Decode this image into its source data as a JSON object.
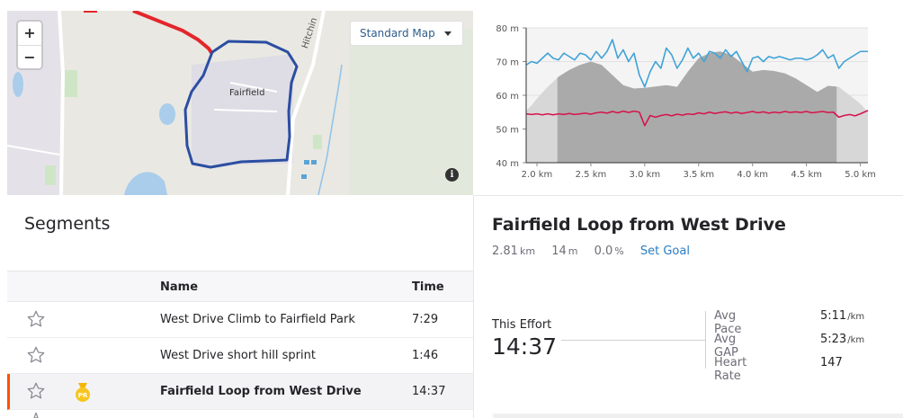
{
  "map": {
    "zoom_in": "+",
    "zoom_out": "−",
    "map_type": "Standard Map",
    "info": "i",
    "place_label": "Fairfield",
    "road_label": "Hitchin"
  },
  "chart_data": {
    "type": "area",
    "xlabel": "",
    "ylabel": "",
    "x_ticks": [
      "2.0 km",
      "2.5 km",
      "3.0 km",
      "3.5 km",
      "4.0 km",
      "4.5 km",
      "5.0 km"
    ],
    "y_ticks": [
      "40 m",
      "50 m",
      "60 m",
      "70 m",
      "80 m"
    ],
    "xlim": [
      1.9,
      5.07
    ],
    "ylim": [
      40,
      80
    ],
    "highlight_range": [
      2.19,
      4.78
    ],
    "series": [
      {
        "kind": "elevation",
        "color": "#aaaaaa",
        "x": [
          1.9,
          1.95,
          2.0,
          2.1,
          2.2,
          2.3,
          2.4,
          2.5,
          2.6,
          2.7,
          2.8,
          2.9,
          3.0,
          3.1,
          3.2,
          3.3,
          3.4,
          3.5,
          3.6,
          3.7,
          3.8,
          3.9,
          4.0,
          4.1,
          4.2,
          4.3,
          4.4,
          4.5,
          4.6,
          4.7,
          4.8,
          4.9,
          5.0,
          5.07
        ],
        "y": [
          55.5,
          57,
          59,
          62.5,
          65.5,
          67.5,
          69,
          70,
          69,
          66,
          63,
          62,
          62.2,
          62.6,
          63,
          62.5,
          67,
          71,
          72.5,
          73,
          72,
          69.5,
          67,
          67.5,
          67.2,
          66.5,
          65,
          63,
          61,
          62.8,
          62.5,
          60,
          57.5,
          55
        ]
      },
      {
        "kind": "pace",
        "color": "#3fa3d8",
        "x": [
          1.9,
          1.95,
          2.0,
          2.05,
          2.1,
          2.15,
          2.2,
          2.25,
          2.3,
          2.35,
          2.4,
          2.45,
          2.5,
          2.55,
          2.6,
          2.65,
          2.7,
          2.75,
          2.8,
          2.85,
          2.9,
          2.95,
          3.0,
          3.05,
          3.1,
          3.15,
          3.2,
          3.25,
          3.3,
          3.35,
          3.4,
          3.45,
          3.5,
          3.55,
          3.6,
          3.65,
          3.7,
          3.75,
          3.8,
          3.85,
          3.9,
          3.95,
          4.0,
          4.05,
          4.1,
          4.15,
          4.2,
          4.25,
          4.3,
          4.35,
          4.4,
          4.45,
          4.5,
          4.55,
          4.6,
          4.65,
          4.7,
          4.75,
          4.8,
          4.85,
          4.9,
          4.95,
          5.0,
          5.07
        ],
        "y": [
          69,
          70,
          69.5,
          71,
          72.5,
          71,
          70.5,
          72.5,
          71.5,
          70.5,
          72.5,
          72,
          70.5,
          73,
          71,
          73,
          76.5,
          71,
          73.5,
          70,
          72.5,
          66,
          62.5,
          67,
          70,
          68,
          74,
          72,
          68,
          70.5,
          74,
          71,
          72.5,
          70,
          73,
          72.5,
          71,
          73.5,
          71.5,
          73,
          70,
          67,
          71,
          71.5,
          70,
          71.5,
          71,
          71.5,
          71,
          70.5,
          71,
          71,
          70.5,
          71,
          72,
          73.5,
          71,
          72,
          68,
          70,
          71,
          72,
          73,
          73
        ]
      },
      {
        "kind": "heart_rate",
        "color": "#d6154c",
        "x": [
          1.9,
          1.95,
          2.0,
          2.05,
          2.1,
          2.15,
          2.2,
          2.25,
          2.3,
          2.35,
          2.4,
          2.45,
          2.5,
          2.55,
          2.6,
          2.65,
          2.7,
          2.75,
          2.8,
          2.85,
          2.9,
          2.95,
          3.0,
          3.05,
          3.1,
          3.15,
          3.2,
          3.25,
          3.3,
          3.35,
          3.4,
          3.45,
          3.5,
          3.55,
          3.6,
          3.65,
          3.7,
          3.75,
          3.8,
          3.85,
          3.9,
          3.95,
          4.0,
          4.05,
          4.1,
          4.15,
          4.2,
          4.25,
          4.3,
          4.35,
          4.4,
          4.45,
          4.5,
          4.55,
          4.6,
          4.65,
          4.7,
          4.75,
          4.8,
          4.85,
          4.9,
          4.95,
          5.0,
          5.07
        ],
        "y": [
          54.5,
          54.3,
          54.5,
          54.2,
          54.5,
          54.2,
          54.5,
          54.3,
          54.6,
          54.3,
          54.5,
          54.7,
          54.4,
          54.8,
          55,
          54.7,
          55.2,
          54.8,
          55.3,
          54.9,
          55.3,
          55,
          51,
          54,
          53.5,
          54,
          54.3,
          53.9,
          54.4,
          54.1,
          54.5,
          54.3,
          54.8,
          54.5,
          55,
          54.6,
          54.9,
          55.1,
          54.7,
          55,
          54.6,
          54.9,
          55.2,
          54.8,
          55.1,
          54.7,
          55,
          54.8,
          55.2,
          54.9,
          55.1,
          54.9,
          55.2,
          54.8,
          55,
          55.2,
          54.9,
          55,
          53.5,
          54,
          54.3,
          53.9,
          54.5,
          55.5
        ]
      }
    ]
  },
  "segments": {
    "title": "Segments",
    "col_name": "Name",
    "col_time": "Time",
    "rows": [
      {
        "name": "West Drive Climb to Fairfield Park",
        "time": "7:29"
      },
      {
        "name": "West Drive short hill sprint",
        "time": "1:46"
      },
      {
        "name": "Fairfield Loop from West Drive",
        "time": "14:37"
      }
    ],
    "pr_badge": "PR"
  },
  "detail": {
    "title": "Fairfield Loop from West Drive",
    "distance": "2.81",
    "distance_unit": "km",
    "elev": "14",
    "elev_unit": "m",
    "grade": "0.0",
    "grade_unit": "%",
    "set_goal": "Set Goal",
    "effort_label": "This Effort",
    "effort_value": "14:37",
    "metrics": [
      {
        "label": "Avg Pace",
        "value": "5:11",
        "unit": "/km"
      },
      {
        "label": "Avg GAP",
        "value": "5:23",
        "unit": "/km"
      },
      {
        "label": "Heart Rate",
        "value": "147",
        "unit": ""
      }
    ]
  },
  "colors": {
    "accent": "#fc5200",
    "route": "#2b4ea2",
    "route_start": "#e3262b",
    "link": "#2a7cc1"
  }
}
